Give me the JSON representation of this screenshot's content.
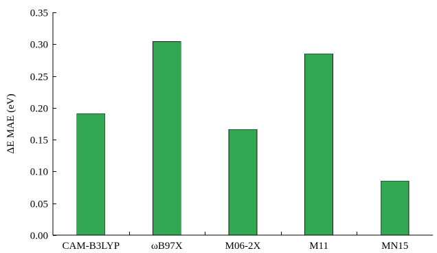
{
  "chart_data": {
    "type": "bar",
    "title": "",
    "xlabel": "",
    "ylabel": "ΔE MAE (eV)",
    "categories": [
      "CAM-B3LYP",
      "ωB97X",
      "M06-2X",
      "M11",
      "MN15"
    ],
    "values": [
      0.191,
      0.304,
      0.166,
      0.285,
      0.085
    ],
    "ylim": [
      0,
      0.35
    ],
    "yticks": [
      0.0,
      0.05,
      0.1,
      0.15,
      0.2,
      0.25,
      0.3,
      0.35
    ],
    "ytick_labels": [
      "0.00",
      "0.05",
      "0.10",
      "0.15",
      "0.20",
      "0.25",
      "0.30",
      "0.35"
    ],
    "grid": false,
    "legend": "none",
    "bar_color": "#33a852"
  }
}
